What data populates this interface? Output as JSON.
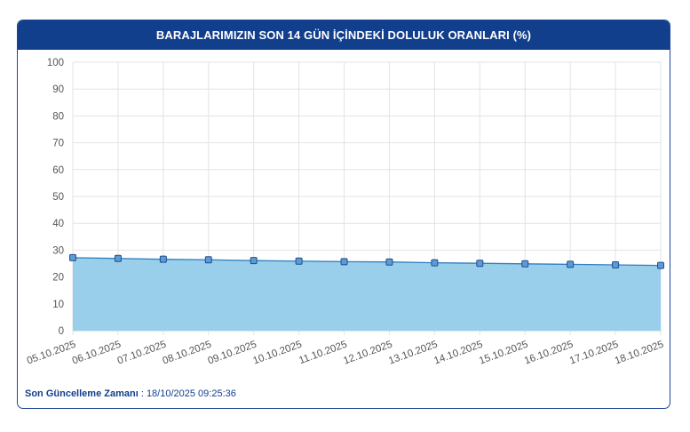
{
  "header": {
    "title": "BARAJLARIMIZIN SON 14 GÜN İÇİNDEKİ DOLULUK ORANLARI (%)"
  },
  "footer": {
    "label": "Son Güncelleme Zamanı",
    "separator": " : ",
    "value": "18/10/2025 09:25:36"
  },
  "colors": {
    "header_bg": "#123f8c",
    "area_fill": "#99cfeb",
    "line": "#2f7fc0",
    "marker_fill": "#5b9bd5",
    "marker_stroke": "#1f4e8c",
    "grid": "#e3e3e3"
  },
  "chart_data": {
    "type": "area",
    "categories": [
      "05.10.2025",
      "06.10.2025",
      "07.10.2025",
      "08.10.2025",
      "09.10.2025",
      "10.10.2025",
      "11.10.2025",
      "12.10.2025",
      "13.10.2025",
      "14.10.2025",
      "15.10.2025",
      "16.10.2025",
      "17.10.2025",
      "18.10.2025"
    ],
    "series": [
      {
        "values": [
          27.2,
          26.9,
          26.6,
          26.4,
          26.1,
          25.9,
          25.7,
          25.6,
          25.3,
          25.1,
          24.9,
          24.7,
          24.5,
          24.3
        ]
      }
    ],
    "yticks": [
      "0",
      "10",
      "20",
      "30",
      "40",
      "50",
      "60",
      "70",
      "80",
      "90",
      "100"
    ],
    "ylim": [
      0,
      100
    ],
    "grid": true,
    "legend": "none",
    "markers": "square"
  }
}
